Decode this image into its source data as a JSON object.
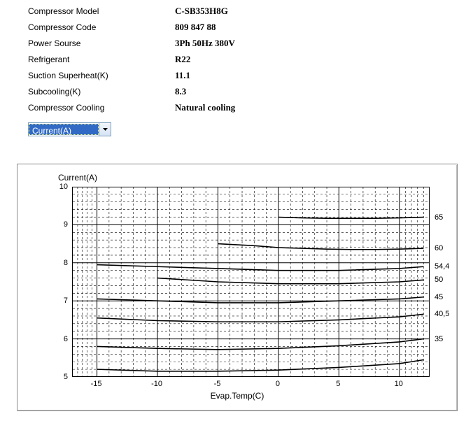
{
  "specs": {
    "rows": [
      {
        "label": "Compressor Model",
        "value": "C-SB353H8G"
      },
      {
        "label": "Compressor Code",
        "value": "809 847 88"
      },
      {
        "label": "Power Sourse",
        "value": "3Ph  50Hz  380V"
      },
      {
        "label": "Refrigerant",
        "value": "R22"
      },
      {
        "label": "Suction Superheat(K)",
        "value": "11.1"
      },
      {
        "label": "Subcooling(K)",
        "value": "8.3"
      },
      {
        "label": "Compressor Cooling",
        "value": "Natural cooling"
      }
    ]
  },
  "dropdown": {
    "selected": "Current(A)"
  },
  "chart": {
    "type": "line",
    "title": "Current(A)",
    "xlabel": "Evap.Temp(C)",
    "x_min": -17.0,
    "x_max": 12.5,
    "x_ticks": [
      -15,
      -10,
      -5,
      0,
      5,
      10
    ],
    "y_min": 5.0,
    "y_max": 10.0,
    "y_ticks": [
      5,
      6,
      7,
      8,
      9,
      10
    ],
    "y_minor_count": 5,
    "x_minor_count": 5,
    "background_color": "#ffffff",
    "major_grid_color": "#000000",
    "minor_grid_color": "#000000",
    "line_color": "#000000",
    "text_color": "#000000",
    "series": [
      {
        "label": "65",
        "x": [
          0,
          2,
          4,
          6,
          8,
          10,
          12
        ],
        "y": [
          9.2,
          9.18,
          9.17,
          9.17,
          9.17,
          9.18,
          9.2
        ]
      },
      {
        "label": "60",
        "x": [
          -5,
          -2,
          0,
          2,
          4,
          6,
          8,
          10,
          12
        ],
        "y": [
          8.5,
          8.45,
          8.4,
          8.38,
          8.36,
          8.35,
          8.35,
          8.36,
          8.38
        ]
      },
      {
        "label": "54,4",
        "x": [
          -15,
          -10,
          -5,
          0,
          5,
          10,
          12
        ],
        "y": [
          7.95,
          7.9,
          7.85,
          7.8,
          7.8,
          7.85,
          7.9
        ]
      },
      {
        "label": "50",
        "x": [
          -10,
          -5,
          0,
          5,
          10,
          12
        ],
        "y": [
          7.6,
          7.5,
          7.45,
          7.45,
          7.5,
          7.55
        ]
      },
      {
        "label": "45",
        "x": [
          -15,
          -10,
          -5,
          0,
          5,
          10,
          12
        ],
        "y": [
          7.05,
          7.0,
          6.95,
          6.95,
          7.0,
          7.05,
          7.1
        ]
      },
      {
        "label": "40,5",
        "x": [
          -15,
          -10,
          -5,
          0,
          5,
          10,
          12
        ],
        "y": [
          6.55,
          6.48,
          6.45,
          6.45,
          6.5,
          6.58,
          6.65
        ]
      },
      {
        "label": "35",
        "x": [
          -15,
          -10,
          -5,
          0,
          5,
          10,
          12
        ],
        "y": [
          5.8,
          5.75,
          5.72,
          5.75,
          5.82,
          5.92,
          6.0
        ]
      },
      {
        "label": "",
        "x": [
          -15,
          -10,
          -5,
          0,
          5,
          10,
          12
        ],
        "y": [
          5.2,
          5.15,
          5.15,
          5.18,
          5.25,
          5.35,
          5.45
        ]
      }
    ]
  }
}
